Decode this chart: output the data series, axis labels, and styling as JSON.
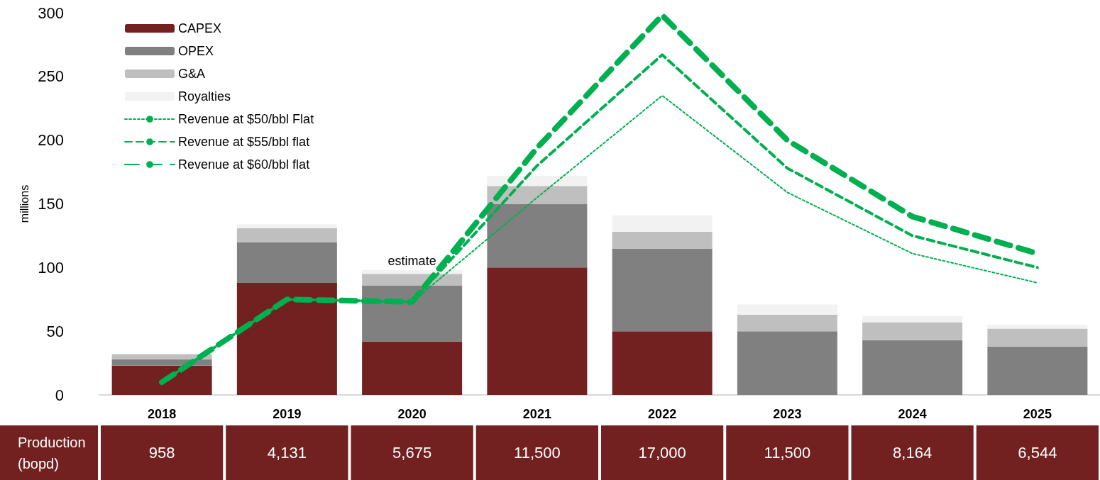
{
  "chart_data": {
    "type": "bar",
    "stacked": true,
    "ylabel": "millions",
    "categories": [
      "2018",
      "2019",
      "2020",
      "2021",
      "2022",
      "2023",
      "2024",
      "2025"
    ],
    "series": [
      {
        "name": "CAPEX",
        "color": "#722020",
        "values": [
          23,
          88,
          42,
          100,
          50,
          0,
          0,
          0
        ]
      },
      {
        "name": "OPEX",
        "color": "#808080",
        "values": [
          5,
          32,
          44,
          50,
          65,
          50,
          43,
          38
        ]
      },
      {
        "name": "G&A",
        "color": "#bfbfbf",
        "values": [
          4,
          11,
          9,
          14,
          13,
          13,
          14,
          14
        ]
      },
      {
        "name": "Royalties",
        "color": "#f2f2f2",
        "values": [
          0,
          3,
          3,
          8,
          13,
          8,
          5,
          3
        ]
      },
      {
        "name": "Revenue at $50/bbl Flat",
        "type": "line",
        "color": "#00b050",
        "line_style": "dotted",
        "values": [
          10,
          75,
          73,
          155,
          235,
          159,
          111,
          88
        ]
      },
      {
        "name": "Revenue at $55/bbl flat",
        "type": "line",
        "color": "#00b050",
        "line_style": "dashed",
        "values": [
          10,
          75,
          73,
          180,
          267,
          178,
          125,
          100
        ]
      },
      {
        "name": "Revenue at $60/bbl flat",
        "type": "line",
        "color": "#00b050",
        "line_style": "dashed",
        "values": [
          10,
          75,
          73,
          194,
          298,
          200,
          140,
          111
        ]
      }
    ],
    "ylim": [
      0,
      300
    ],
    "yticks": [
      0,
      50,
      100,
      150,
      200,
      250,
      300
    ],
    "grid": false,
    "legend": "top left",
    "marker": "none",
    "annotations": [
      {
        "text": "estimate",
        "x": "2020",
        "y": 98
      },
      "Production (bopd)",
      "958",
      "4,131",
      "5,675",
      "11,500",
      "17,000",
      "11,500",
      "8,164",
      "6,544"
    ]
  }
}
